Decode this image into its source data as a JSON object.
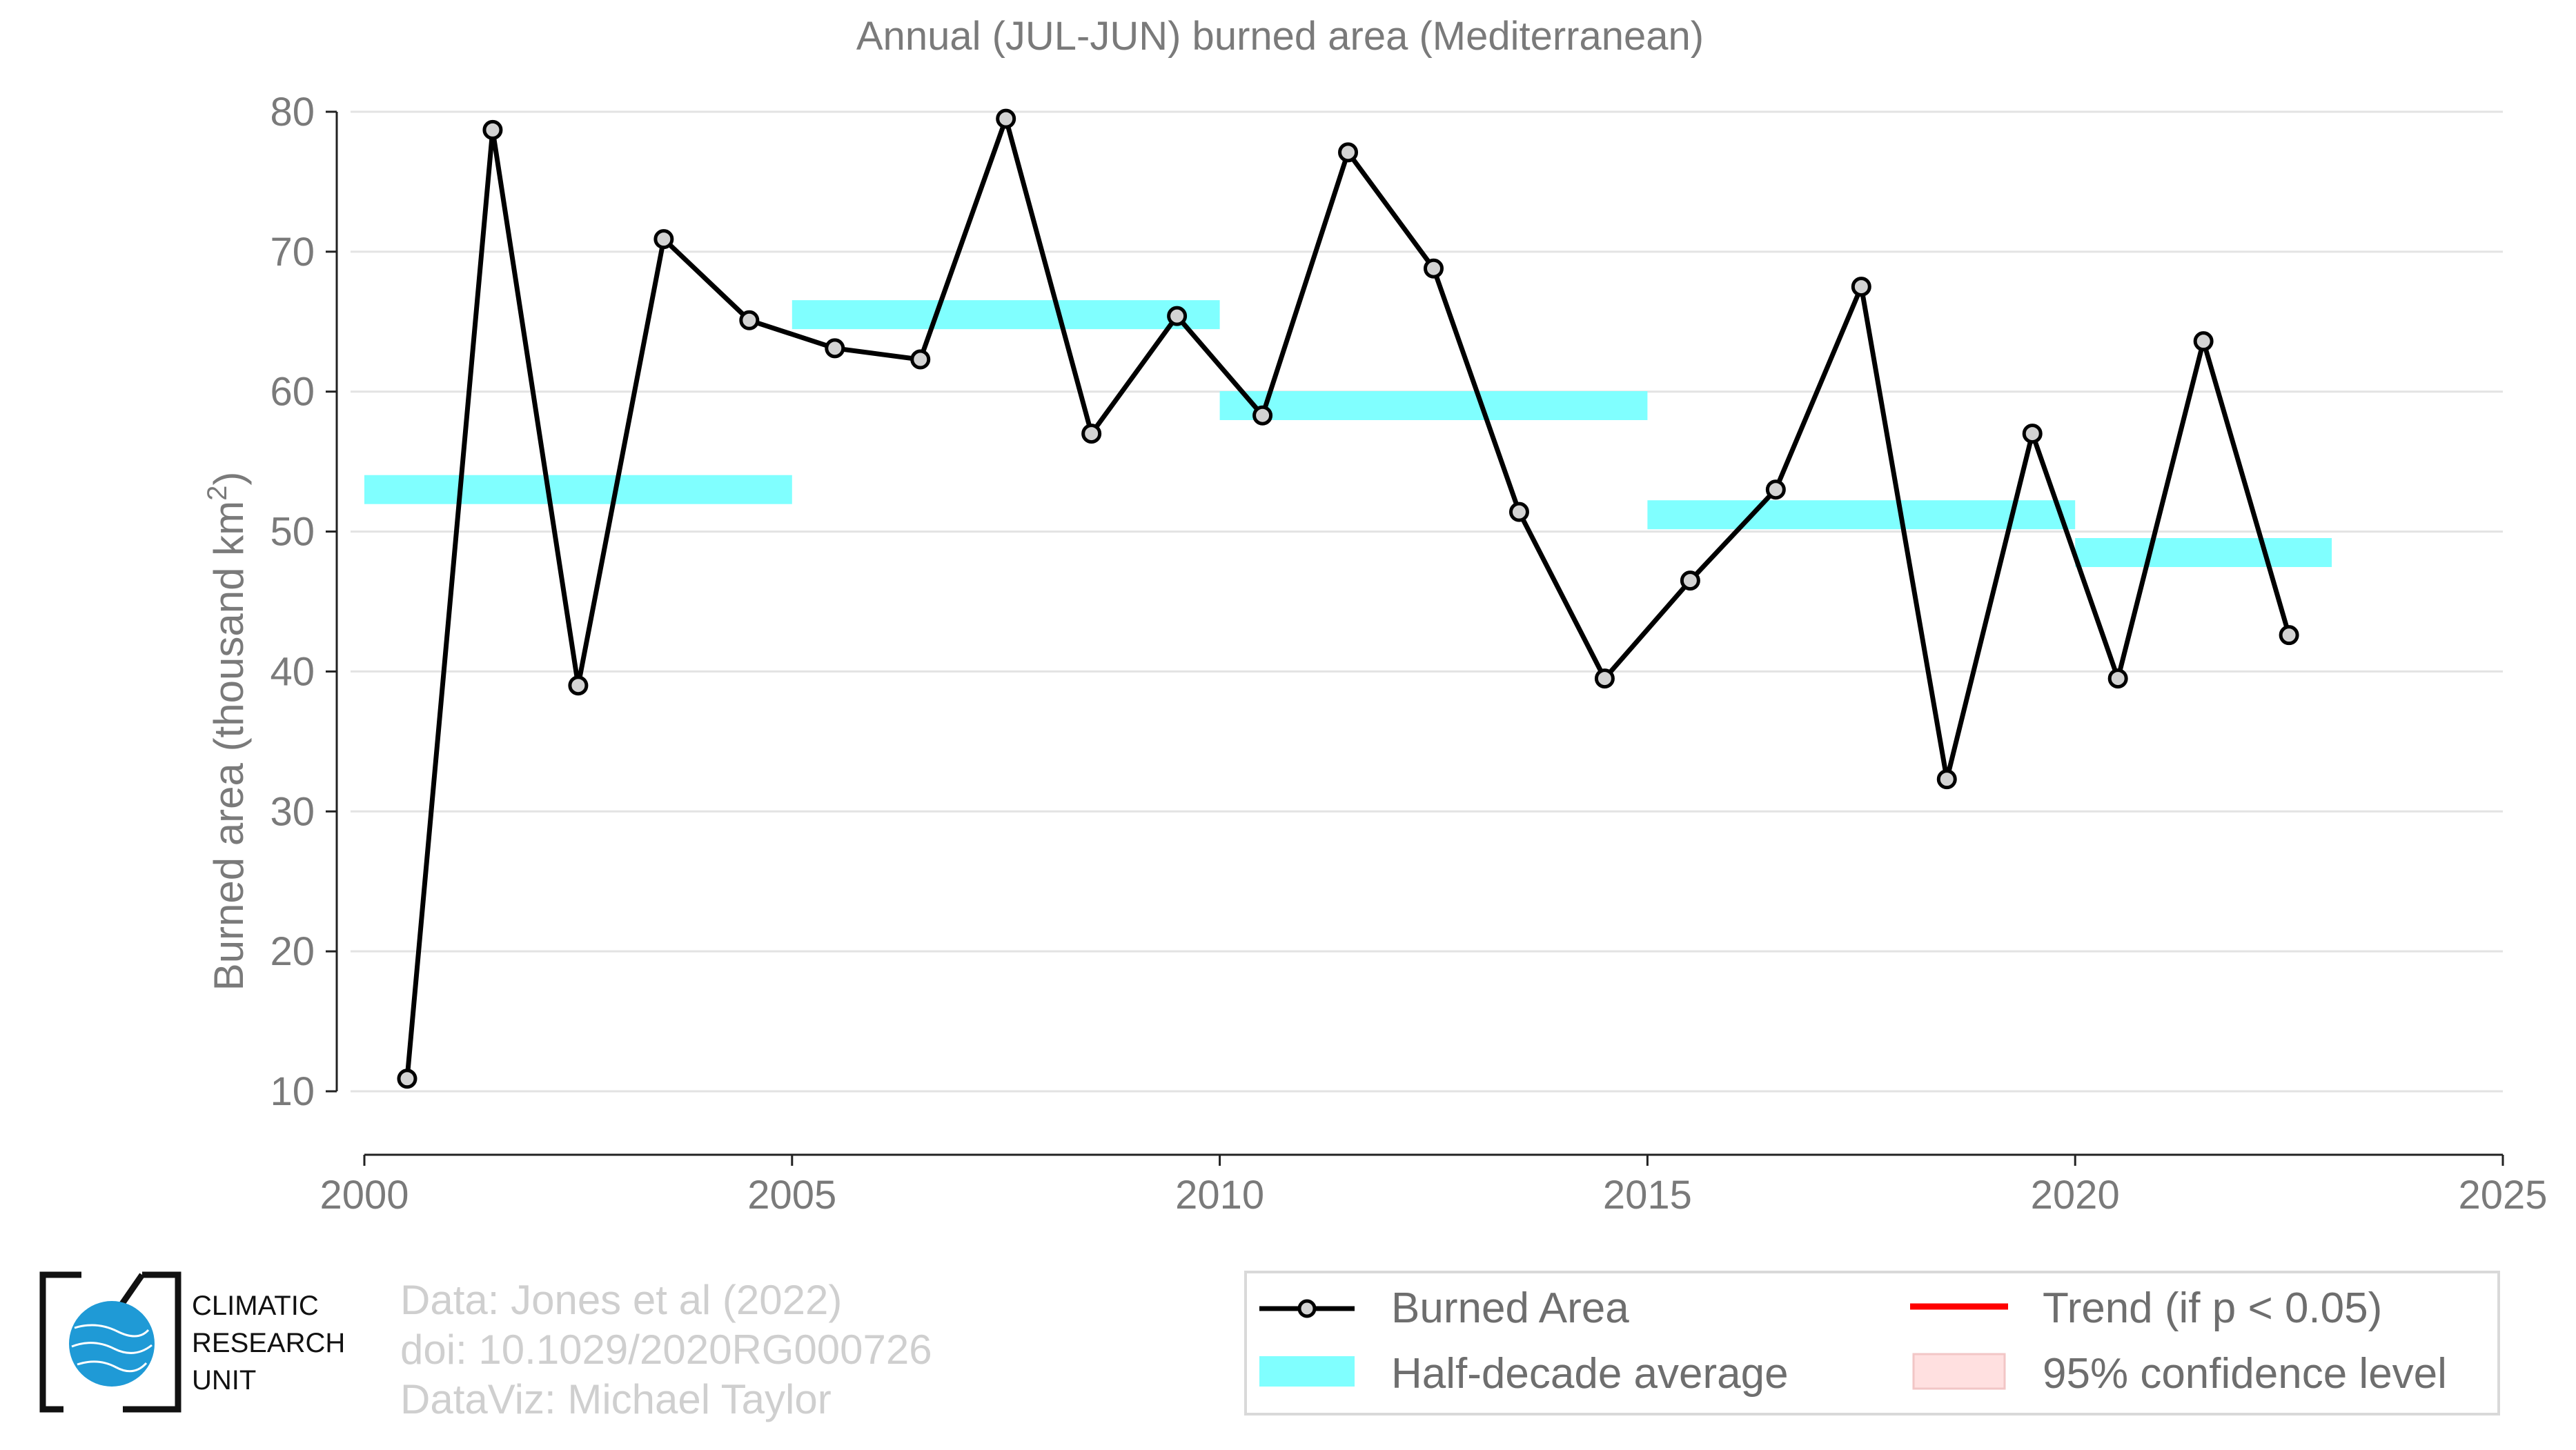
{
  "chart_data": {
    "type": "line",
    "title": "Annual (JUL-JUN) burned area (Mediterranean)",
    "xlabel": "",
    "ylabel": "Burned area (thousand km",
    "ylabel_sup": "2",
    "ylabel_close": ")",
    "xlim": [
      2000,
      2025
    ],
    "ylim": [
      10,
      80
    ],
    "x_ticks": [
      2000,
      2005,
      2010,
      2015,
      2020,
      2025
    ],
    "y_ticks": [
      10,
      20,
      30,
      40,
      50,
      60,
      70,
      80
    ],
    "grid": "horizontal",
    "series": [
      {
        "name": "Burned Area",
        "x": [
          2000.5,
          2001.5,
          2002.5,
          2003.5,
          2004.5,
          2005.5,
          2006.5,
          2007.5,
          2008.5,
          2009.5,
          2010.5,
          2011.5,
          2012.5,
          2013.5,
          2014.5,
          2015.5,
          2016.5,
          2017.5,
          2018.5,
          2019.5,
          2020.5,
          2021.5,
          2022.5
        ],
        "values": [
          10.9,
          78.7,
          39.0,
          70.9,
          65.1,
          63.1,
          62.3,
          79.5,
          57.0,
          65.4,
          58.3,
          77.1,
          68.8,
          51.4,
          39.5,
          46.5,
          53.0,
          67.5,
          32.3,
          57.0,
          39.5,
          63.6,
          42.6
        ],
        "color": "#000000"
      }
    ],
    "half_decade_average": {
      "name": "Half-decade average",
      "color": "#80ffff",
      "periods": [
        {
          "x_start": 2000,
          "x_end": 2005,
          "value": 53.0
        },
        {
          "x_start": 2005,
          "x_end": 2010,
          "value": 65.5
        },
        {
          "x_start": 2010,
          "x_end": 2015,
          "value": 59.0
        },
        {
          "x_start": 2015,
          "x_end": 2020,
          "value": 51.2
        },
        {
          "x_start": 2020,
          "x_end": 2023,
          "value": 48.5
        }
      ]
    },
    "legend": {
      "placement": "bottom-right",
      "items": [
        {
          "label": "Burned Area",
          "kind": "line-marker",
          "color": "#000000"
        },
        {
          "label": "Trend (if p < 0.05)",
          "kind": "line",
          "color": "#ff0000"
        },
        {
          "label": "Half-decade average",
          "kind": "band",
          "color": "#80ffff"
        },
        {
          "label": "95% confidence level",
          "kind": "band",
          "color": "#ffe0e0"
        }
      ]
    }
  },
  "credits": {
    "line1": "Data: Jones et al (2022)",
    "line2": "doi: 10.1029/2020RG000726",
    "line3": "DataViz: Michael Taylor"
  },
  "logo": {
    "line1": "CLIMATIC",
    "line2": "RESEARCH",
    "line3": "UNIT",
    "globe_color": "#1f9ad6"
  }
}
